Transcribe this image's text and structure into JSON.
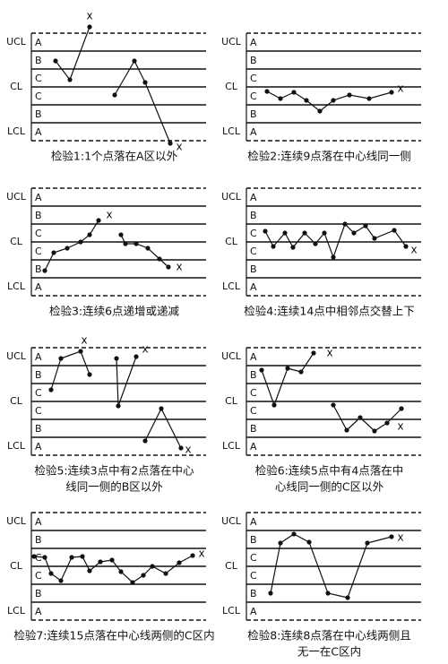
{
  "axis_labels": {
    "ucl": "UCL",
    "cl": "CL",
    "lcl": "LCL"
  },
  "zones": [
    "A",
    "B",
    "C",
    "C",
    "B",
    "A"
  ],
  "panels": [
    {
      "caption": [
        "检验1:1个点落在A区以外"
      ],
      "markers": [
        "x",
        "x"
      ]
    },
    {
      "caption": [
        "检验2:连续9点落在中心线同一侧"
      ],
      "markers": [
        "x"
      ]
    },
    {
      "caption": [
        "检验3:连续6点递增或递减"
      ],
      "markers": [
        "x",
        "x"
      ]
    },
    {
      "caption": [
        "检验4:连续14点中相邻点交替上下"
      ],
      "markers": [
        "x"
      ]
    },
    {
      "caption": [
        "检验5:连续3点中有2点落在中心",
        "线同一侧的B区以外"
      ],
      "markers": [
        "x",
        "x",
        "x"
      ]
    },
    {
      "caption": [
        "检验6:连续5点中有4点落在中",
        "心线同一侧的C区以外"
      ],
      "markers": [
        "x",
        "x"
      ]
    },
    {
      "caption": [
        "检验7:连续15点落在中心线两侧的C区内"
      ],
      "markers": [
        "x"
      ]
    },
    {
      "caption": [
        "检验8:连续8点落在中心线两侧且",
        "无一在C区内"
      ],
      "markers": [
        "x"
      ]
    }
  ]
}
